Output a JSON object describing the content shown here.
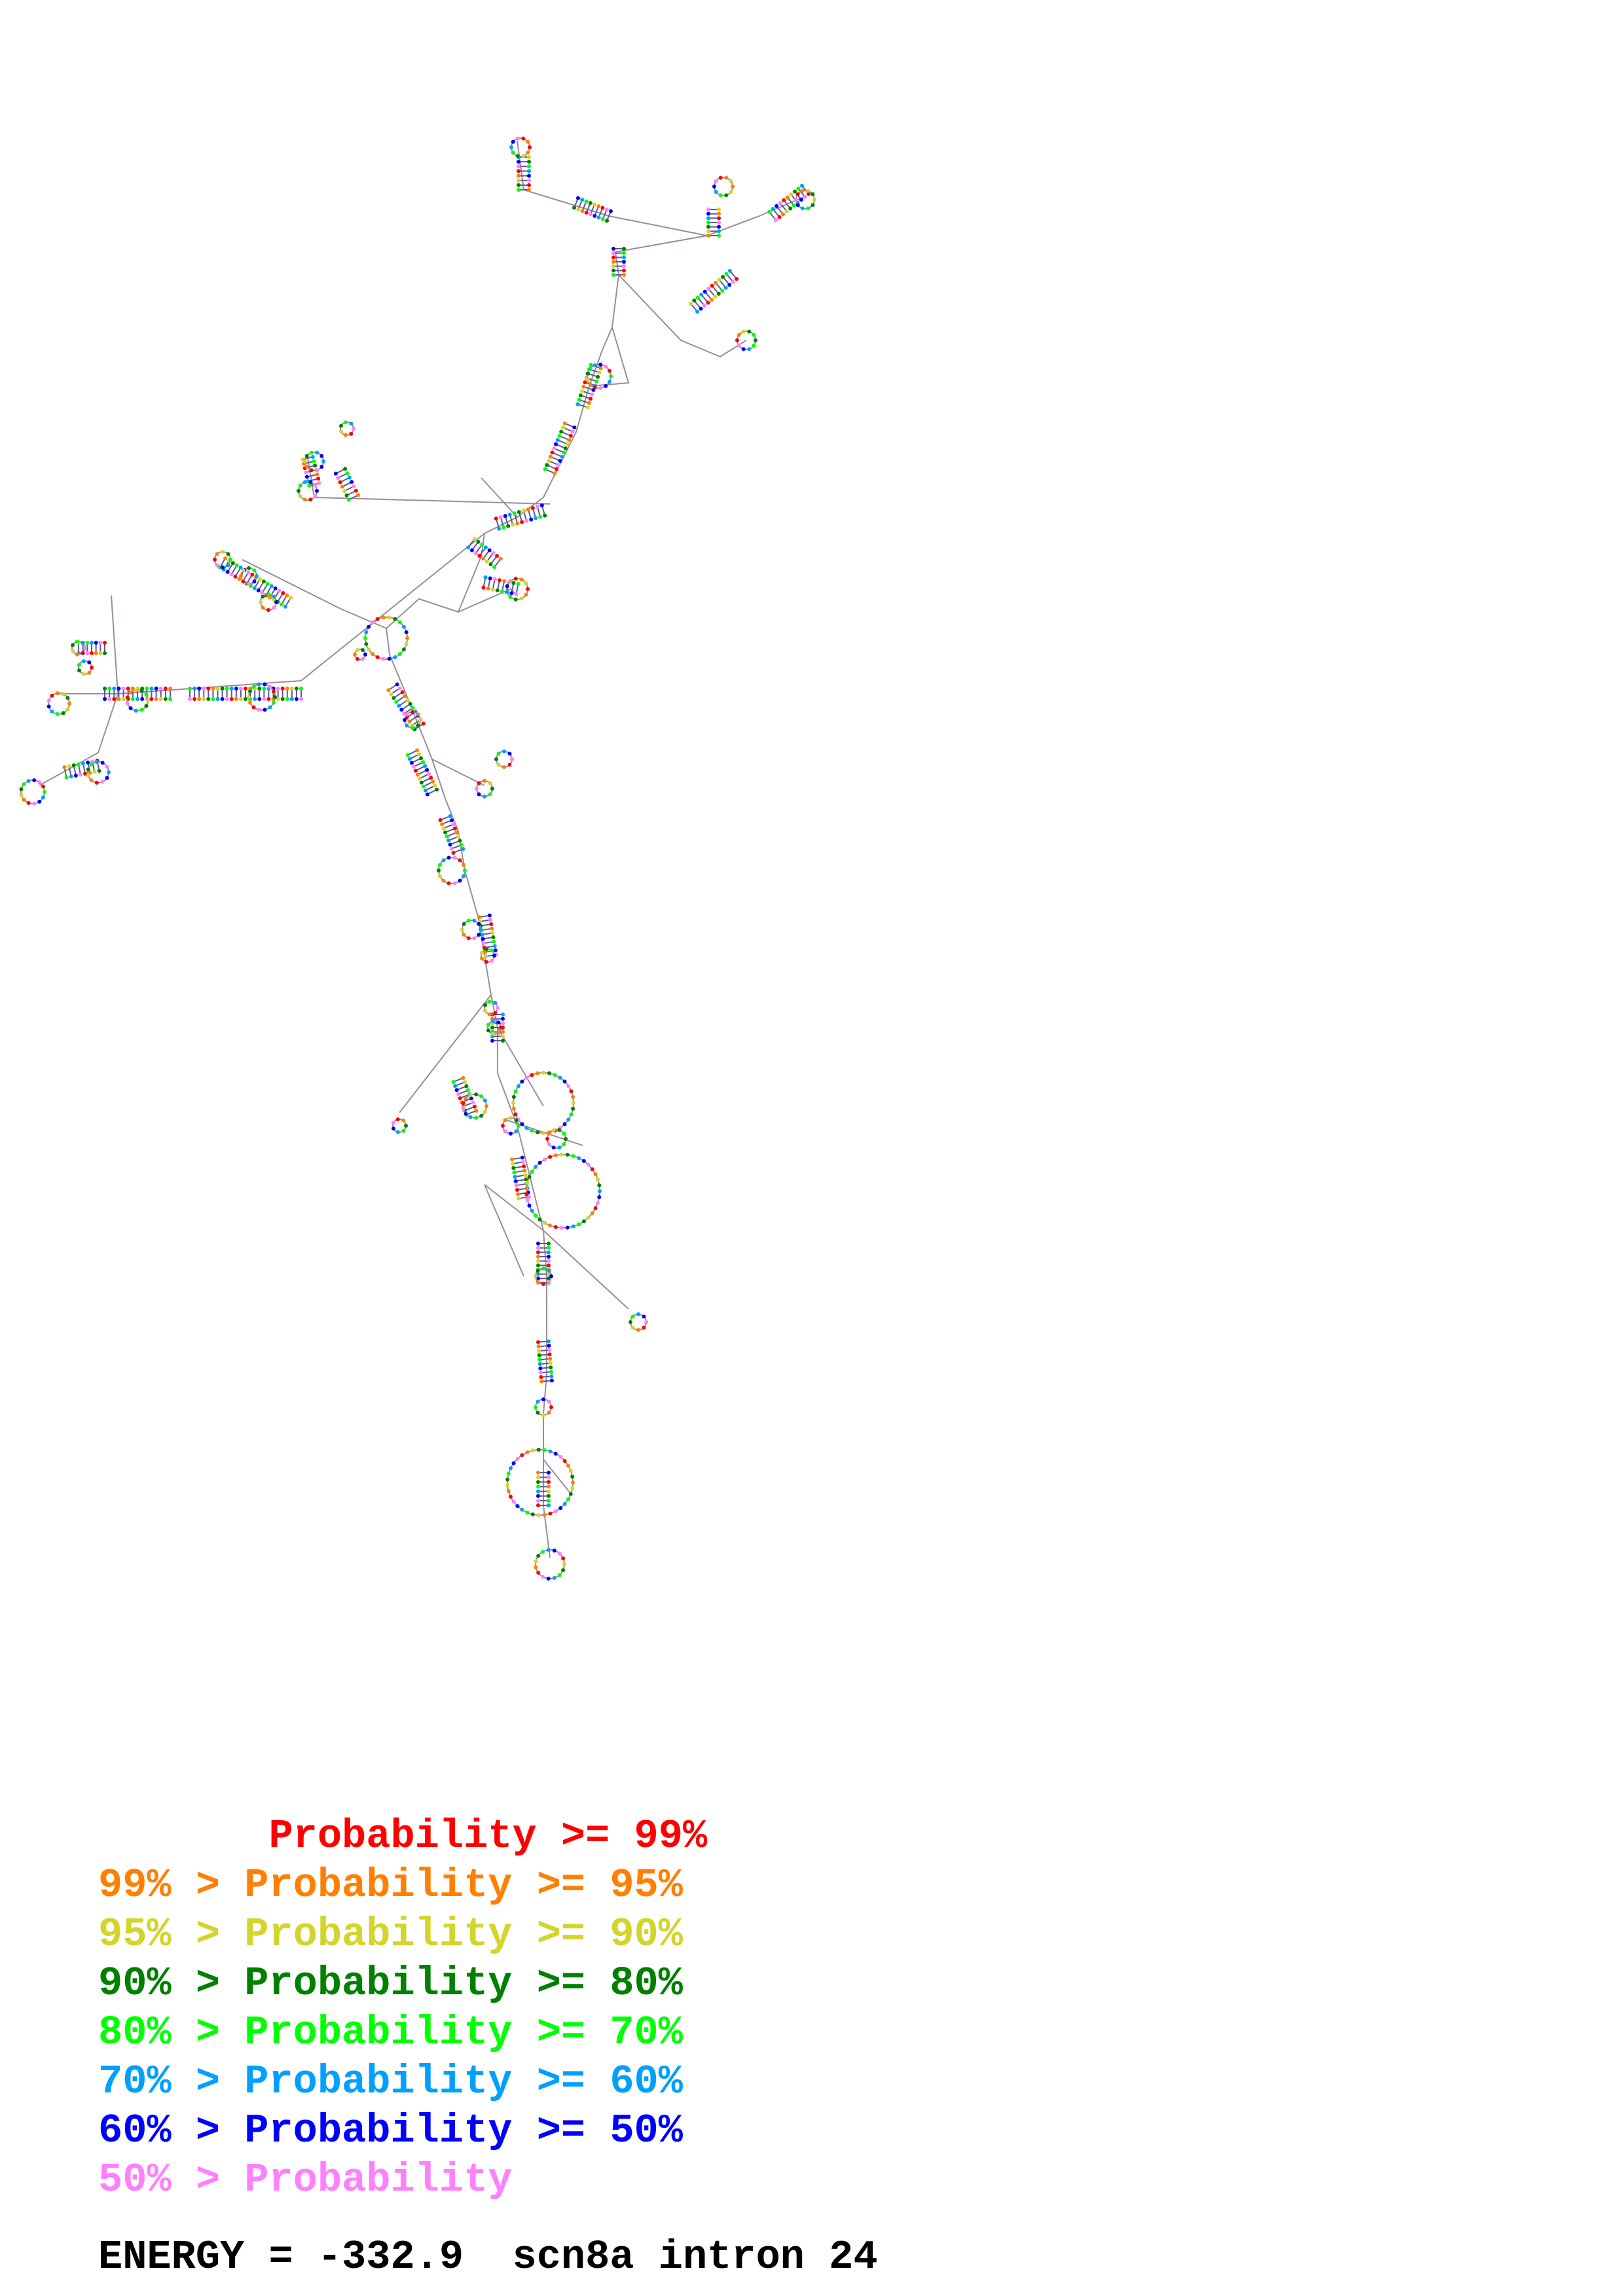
{
  "legend": [
    {
      "text": "       Probability >= 99%",
      "color": "#ff0000"
    },
    {
      "text": "99% > Probability >= 95%",
      "color": "#ff8000"
    },
    {
      "text": "95% > Probability >= 90%",
      "color": "#d4d42a"
    },
    {
      "text": "90% > Probability >= 80%",
      "color": "#008000"
    },
    {
      "text": "80% > Probability >= 70%",
      "color": "#00ff00"
    },
    {
      "text": "70% > Probability >= 60%",
      "color": "#00a0ff"
    },
    {
      "text": "60% > Probability >= 50%",
      "color": "#0000ff"
    },
    {
      "text": "50% > Probability",
      "color": "#ff80ff"
    }
  ],
  "energy": {
    "label": "ENERGY = -332.9  scn8a intron 24"
  },
  "colors": {
    "backbone": "#9a8c9a",
    "pair_lines": "#5a5a9a"
  }
}
